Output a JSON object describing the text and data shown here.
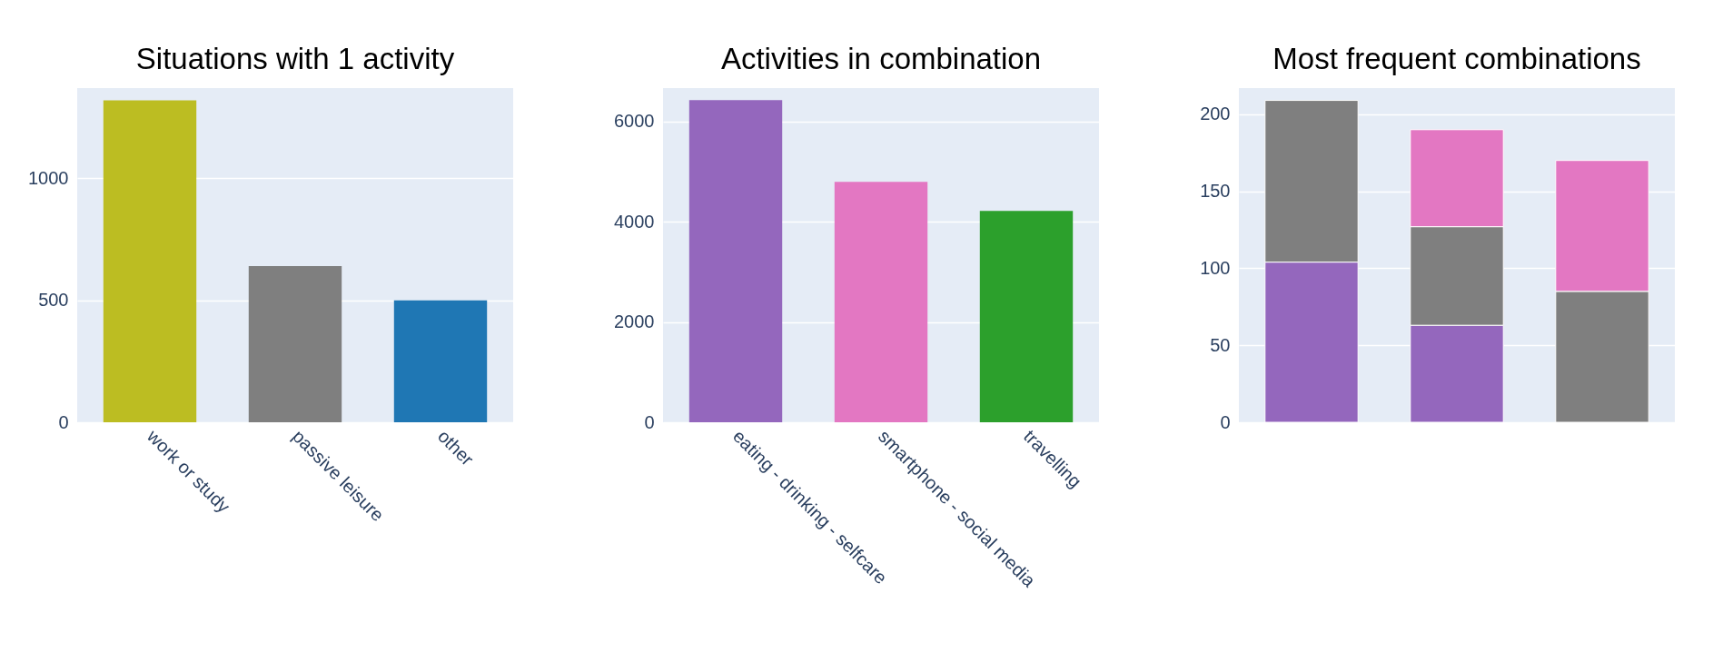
{
  "chart_data": [
    {
      "type": "bar",
      "title": "Situations with 1 activity",
      "categories": [
        "work or study",
        "passive leisure",
        "other"
      ],
      "values": [
        1320,
        640,
        500
      ],
      "colors": [
        "#bcbd22",
        "#7f7f7f",
        "#1f77b4"
      ],
      "ylim": [
        0,
        1370
      ],
      "yticks": [
        0,
        500,
        1000
      ],
      "grid": "y"
    },
    {
      "type": "bar",
      "title": "Activities in combination",
      "categories": [
        "eating - drinking - selfcare",
        "smartphone - social media",
        "travelling"
      ],
      "values": [
        6430,
        4800,
        4220
      ],
      "colors": [
        "#9467bd",
        "#e377c2",
        "#2ca02c"
      ],
      "ylim": [
        0,
        6670
      ],
      "yticks": [
        0,
        2000,
        4000,
        6000
      ],
      "grid": "y"
    },
    {
      "type": "bar",
      "title": "Most frequent combinations",
      "categories": [
        null,
        null,
        null
      ],
      "stacked": true,
      "series": [
        {
          "color": "#9467bd",
          "values": [
            104,
            63,
            null
          ]
        },
        {
          "color": "#7f7f7f",
          "values": [
            105,
            64,
            85
          ]
        },
        {
          "color": "#e377c2",
          "values": [
            null,
            63,
            85
          ]
        }
      ],
      "ylim": [
        0,
        217
      ],
      "yticks": [
        0,
        50,
        100,
        150,
        200
      ],
      "grid": "y",
      "tick_labels": "y"
    }
  ]
}
